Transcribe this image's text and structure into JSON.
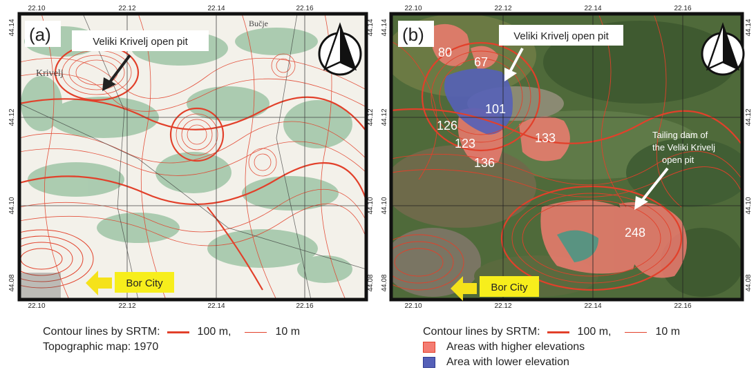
{
  "panel_a": {
    "label": "(a)",
    "ticks_x": [
      "22.10",
      "22.12",
      "22.14",
      "22.16"
    ],
    "ticks_y": [
      "44.14",
      "44.12",
      "44.10",
      "44.08"
    ],
    "annotations": {
      "pit": "Veliki Krivelj open pit",
      "city": "Bor City"
    },
    "map_text": [
      "Krivelj",
      "Bučje",
      "Bor"
    ]
  },
  "panel_b": {
    "label": "(b)",
    "ticks_x": [
      "22.10",
      "22.12",
      "22.14",
      "22.16"
    ],
    "ticks_y": [
      "44.14",
      "44.12",
      "44.10",
      "44.08"
    ],
    "annotations": {
      "pit": "Veliki Krivelj open pit",
      "dam_line1": "Tailing dam of",
      "dam_line2": "the Veliki Krivelj",
      "dam_line3": "open pit",
      "city": "Bor City"
    },
    "area_labels": [
      "80",
      "67",
      "101",
      "126",
      "123",
      "136",
      "133",
      "248"
    ]
  },
  "legend_a": {
    "contour_title": "Contour lines by SRTM:",
    "line_100": "100 m,",
    "line_10": "10 m",
    "topo": "Topographic map: 1970"
  },
  "legend_b": {
    "contour_title": "Contour lines by SRTM:",
    "line_100": "100 m,",
    "line_10": "10 m",
    "higher": "Areas with higher elevations",
    "lower": "Area with lower elevation"
  },
  "colors": {
    "contour": "#e2402a",
    "higher_fill": "#f47c72",
    "lower_fill": "#5560b8",
    "arrow_yellow": "#f5e21a",
    "label_yellow": "#f7ee1c"
  }
}
